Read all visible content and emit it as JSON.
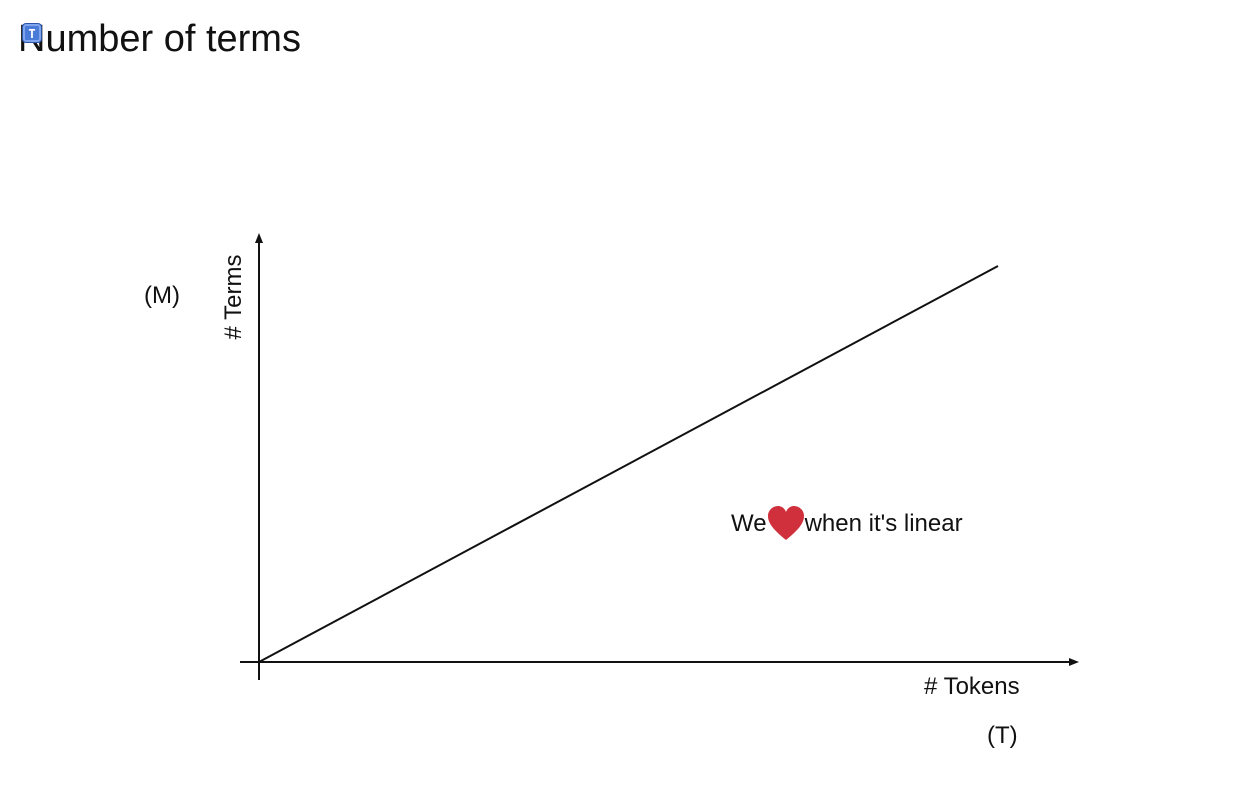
{
  "page": {
    "title": "Number of terms"
  },
  "diagram": {
    "y_axis_label": "# Terms",
    "y_axis_unit": "(M)",
    "x_axis_label": "# Tokens",
    "x_axis_unit": "(T)",
    "annotation_before": "We",
    "annotation_icon": "heart-icon",
    "annotation_after": "when it's linear",
    "heart_color": "#d0303c",
    "line_color": "#111111"
  }
}
